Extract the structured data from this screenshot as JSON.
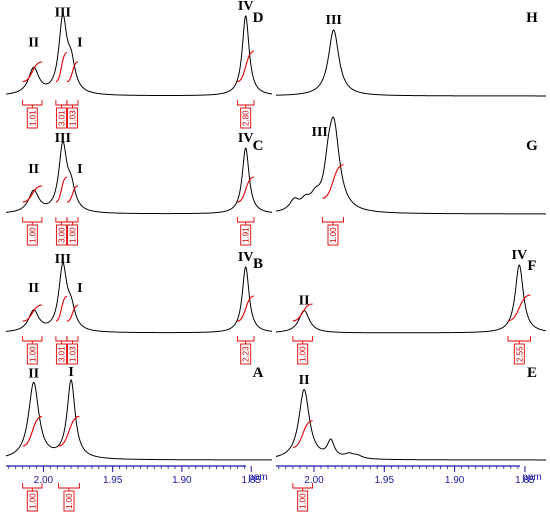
{
  "chart_data": [
    {
      "type": "line",
      "panel": "D",
      "xlabel": "",
      "ylabel": "",
      "peaks": [
        {
          "label": "II",
          "ppm": 2.007,
          "height": 0.33,
          "width": 0.0045
        },
        {
          "label": "III",
          "ppm": 1.986,
          "height": 0.92,
          "width": 0.0035
        },
        {
          "label": "I",
          "ppm": 1.98,
          "height": 0.34,
          "width": 0.0035
        },
        {
          "label": "IV",
          "ppm": 1.854,
          "height": 1.0,
          "width": 0.003
        }
      ],
      "integrals": [
        {
          "value": "1.01",
          "from": 2.015,
          "to": 2.001
        },
        {
          "value": "3.01",
          "from": 1.991,
          "to": 1.983
        },
        {
          "value": "1.03",
          "from": 1.983,
          "to": 1.975
        },
        {
          "value": "2.80",
          "from": 1.86,
          "to": 1.848
        }
      ]
    },
    {
      "type": "line",
      "panel": "C",
      "xlabel": "",
      "ylabel": "",
      "peaks": [
        {
          "label": "II",
          "ppm": 2.007,
          "height": 0.33,
          "width": 0.0045
        },
        {
          "label": "III",
          "ppm": 1.986,
          "height": 1.0,
          "width": 0.0035
        },
        {
          "label": "I",
          "ppm": 1.98,
          "height": 0.33,
          "width": 0.0035
        },
        {
          "label": "IV",
          "ppm": 1.854,
          "height": 1.0,
          "width": 0.003
        }
      ],
      "integrals": [
        {
          "value": "1.00",
          "from": 2.015,
          "to": 2.001
        },
        {
          "value": "3.00",
          "from": 1.991,
          "to": 1.983
        },
        {
          "value": "1.00",
          "from": 1.983,
          "to": 1.975
        },
        {
          "value": "1.91",
          "from": 1.86,
          "to": 1.848
        }
      ]
    },
    {
      "type": "line",
      "panel": "B",
      "xlabel": "",
      "ylabel": "",
      "peaks": [
        {
          "label": "II",
          "ppm": 2.007,
          "height": 0.32,
          "width": 0.0045
        },
        {
          "label": "III",
          "ppm": 1.986,
          "height": 0.97,
          "width": 0.0035
        },
        {
          "label": "I",
          "ppm": 1.98,
          "height": 0.3,
          "width": 0.0035
        },
        {
          "label": "IV",
          "ppm": 1.854,
          "height": 1.0,
          "width": 0.003
        }
      ],
      "integrals": [
        {
          "value": "1.00",
          "from": 2.015,
          "to": 2.001
        },
        {
          "value": "3.01",
          "from": 1.991,
          "to": 1.983
        },
        {
          "value": "1.03",
          "from": 1.983,
          "to": 1.975
        },
        {
          "value": "2.23",
          "from": 1.86,
          "to": 1.848
        }
      ]
    },
    {
      "type": "line",
      "panel": "A",
      "xlabel": "ppm",
      "ylabel": "",
      "peaks": [
        {
          "label": "II",
          "ppm": 2.007,
          "height": 0.98,
          "width": 0.0045
        },
        {
          "label": "I",
          "ppm": 1.98,
          "height": 1.0,
          "width": 0.0035
        }
      ],
      "integrals": [
        {
          "value": "1.00",
          "from": 2.015,
          "to": 2.001
        },
        {
          "value": "1.00",
          "from": 1.989,
          "to": 1.974
        }
      ],
      "x_ticks": [
        "2.00",
        "1.95",
        "1.90",
        "1.85"
      ],
      "xlim": [
        2.027,
        1.835
      ]
    },
    {
      "type": "line",
      "panel": "H",
      "xlabel": "",
      "ylabel": "",
      "peaks": [
        {
          "label": "III",
          "ppm": 1.986,
          "height": 1.0,
          "width": 0.0045
        }
      ],
      "integrals": []
    },
    {
      "type": "line",
      "panel": "G",
      "xlabel": "",
      "ylabel": "",
      "peaks": [
        {
          "label": "III",
          "ppm": 1.986,
          "height": 1.0,
          "width": 0.005
        }
      ],
      "integrals": [
        {
          "value": "1.00",
          "from": 1.994,
          "to": 1.979
        }
      ]
    },
    {
      "type": "line",
      "panel": "F",
      "xlabel": "",
      "ylabel": "",
      "peaks": [
        {
          "label": "II",
          "ppm": 2.007,
          "height": 0.33,
          "width": 0.0045
        },
        {
          "label": "IV",
          "ppm": 1.854,
          "height": 1.0,
          "width": 0.0035
        }
      ],
      "integrals": [
        {
          "value": "1.00",
          "from": 2.015,
          "to": 2.001
        },
        {
          "value": "2.55",
          "from": 1.862,
          "to": 1.846
        }
      ]
    },
    {
      "type": "line",
      "panel": "E",
      "xlabel": "ppm",
      "ylabel": "",
      "peaks": [
        {
          "label": "II",
          "ppm": 2.007,
          "height": 1.0,
          "width": 0.0045
        }
      ],
      "integrals": [
        {
          "value": "1.00",
          "from": 2.015,
          "to": 2.001
        }
      ],
      "x_ticks": [
        "2.00",
        "1.95",
        "1.90",
        "1.85"
      ],
      "xlim": [
        2.027,
        1.835
      ]
    }
  ],
  "colors": {
    "spectrum": "#000000",
    "integral": "#e00000",
    "axis": "#1a1aa6"
  }
}
